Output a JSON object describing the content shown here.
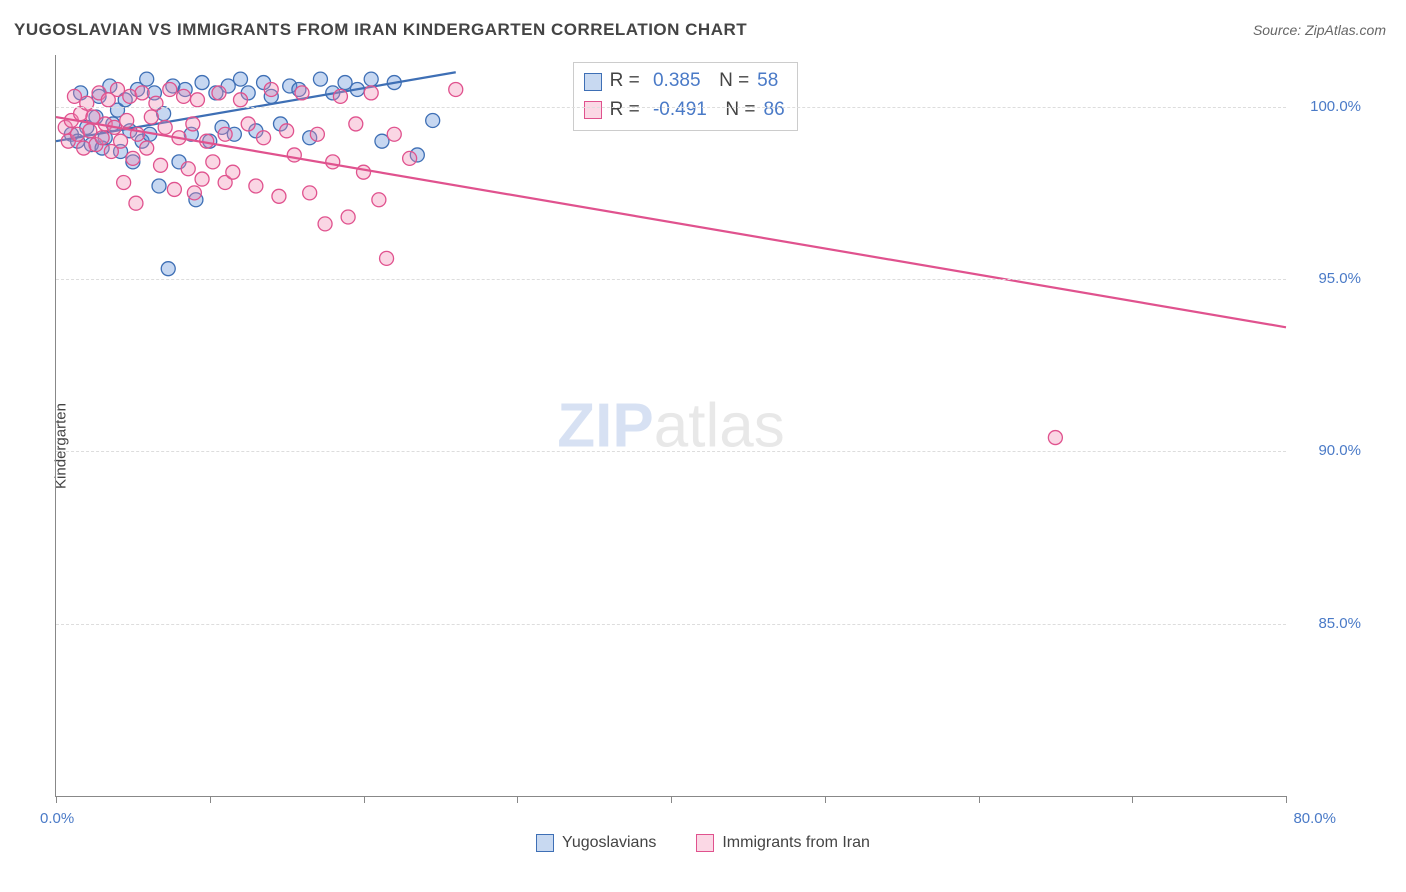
{
  "title": "YUGOSLAVIAN VS IMMIGRANTS FROM IRAN KINDERGARTEN CORRELATION CHART",
  "source": "Source: ZipAtlas.com",
  "y_axis_label": "Kindergarten",
  "watermark": {
    "zip": "ZIP",
    "rest": "atlas"
  },
  "chart": {
    "type": "scatter",
    "xlim": [
      0,
      80
    ],
    "ylim": [
      80,
      101.5
    ],
    "x_origin_label": "0.0%",
    "x_max_label": "80.0%",
    "y_ticks": [
      {
        "v": 85,
        "label": "85.0%"
      },
      {
        "v": 90,
        "label": "90.0%"
      },
      {
        "v": 95,
        "label": "95.0%"
      },
      {
        "v": 100,
        "label": "100.0%"
      }
    ],
    "x_tick_positions": [
      0,
      10,
      20,
      30,
      40,
      50,
      60,
      70,
      80
    ],
    "grid_color": "#dddddd",
    "background_color": "#ffffff",
    "marker_radius": 7,
    "marker_fill_opacity": 0.35,
    "series": [
      {
        "name": "Yugoslavians",
        "color": "#5b8dd6",
        "stroke": "#3e6fb5",
        "R": "0.385",
        "N": "58",
        "trend": {
          "x1": 0,
          "y1": 99.0,
          "x2": 26,
          "y2": 101.0
        },
        "points": [
          [
            1.0,
            99.2
          ],
          [
            1.4,
            99.0
          ],
          [
            1.6,
            100.4
          ],
          [
            2.0,
            99.4
          ],
          [
            2.3,
            98.9
          ],
          [
            2.6,
            99.7
          ],
          [
            2.8,
            100.3
          ],
          [
            3.0,
            98.8
          ],
          [
            3.2,
            99.1
          ],
          [
            3.5,
            100.6
          ],
          [
            3.7,
            99.5
          ],
          [
            4.0,
            99.9
          ],
          [
            4.2,
            98.7
          ],
          [
            4.5,
            100.2
          ],
          [
            4.8,
            99.3
          ],
          [
            5.0,
            98.4
          ],
          [
            5.3,
            100.5
          ],
          [
            5.6,
            99.0
          ],
          [
            5.9,
            100.8
          ],
          [
            6.1,
            99.2
          ],
          [
            6.4,
            100.4
          ],
          [
            6.7,
            97.7
          ],
          [
            7.0,
            99.8
          ],
          [
            7.3,
            95.3
          ],
          [
            7.6,
            100.6
          ],
          [
            8.0,
            98.4
          ],
          [
            8.4,
            100.5
          ],
          [
            8.8,
            99.2
          ],
          [
            9.1,
            97.3
          ],
          [
            9.5,
            100.7
          ],
          [
            10.0,
            99.0
          ],
          [
            10.4,
            100.4
          ],
          [
            10.8,
            99.4
          ],
          [
            11.2,
            100.6
          ],
          [
            11.6,
            99.2
          ],
          [
            12.0,
            100.8
          ],
          [
            12.5,
            100.4
          ],
          [
            13.0,
            99.3
          ],
          [
            13.5,
            100.7
          ],
          [
            14.0,
            100.3
          ],
          [
            14.6,
            99.5
          ],
          [
            15.2,
            100.6
          ],
          [
            15.8,
            100.5
          ],
          [
            16.5,
            99.1
          ],
          [
            17.2,
            100.8
          ],
          [
            18.0,
            100.4
          ],
          [
            18.8,
            100.7
          ],
          [
            19.6,
            100.5
          ],
          [
            20.5,
            100.8
          ],
          [
            21.2,
            99.0
          ],
          [
            22.0,
            100.7
          ],
          [
            23.5,
            98.6
          ],
          [
            24.5,
            99.6
          ]
        ]
      },
      {
        "name": "Immigrants from Iran",
        "color": "#f28ab2",
        "stroke": "#e0528e",
        "R": "-0.491",
        "N": "86",
        "trend": {
          "x1": 0,
          "y1": 99.7,
          "x2": 80,
          "y2": 93.6
        },
        "points": [
          [
            0.6,
            99.4
          ],
          [
            0.8,
            99.0
          ],
          [
            1.0,
            99.6
          ],
          [
            1.2,
            100.3
          ],
          [
            1.4,
            99.2
          ],
          [
            1.6,
            99.8
          ],
          [
            1.8,
            98.8
          ],
          [
            2.0,
            100.1
          ],
          [
            2.2,
            99.3
          ],
          [
            2.4,
            99.7
          ],
          [
            2.6,
            98.9
          ],
          [
            2.8,
            100.4
          ],
          [
            3.0,
            99.1
          ],
          [
            3.2,
            99.5
          ],
          [
            3.4,
            100.2
          ],
          [
            3.6,
            98.7
          ],
          [
            3.8,
            99.4
          ],
          [
            4.0,
            100.5
          ],
          [
            4.2,
            99.0
          ],
          [
            4.4,
            97.8
          ],
          [
            4.6,
            99.6
          ],
          [
            4.8,
            100.3
          ],
          [
            5.0,
            98.5
          ],
          [
            5.3,
            99.2
          ],
          [
            5.6,
            100.4
          ],
          [
            5.9,
            98.8
          ],
          [
            5.2,
            97.2
          ],
          [
            6.2,
            99.7
          ],
          [
            6.5,
            100.1
          ],
          [
            6.8,
            98.3
          ],
          [
            7.1,
            99.4
          ],
          [
            7.4,
            100.5
          ],
          [
            7.7,
            97.6
          ],
          [
            8.0,
            99.1
          ],
          [
            8.3,
            100.3
          ],
          [
            8.6,
            98.2
          ],
          [
            8.9,
            99.5
          ],
          [
            9.2,
            100.2
          ],
          [
            9.5,
            97.9
          ],
          [
            9.8,
            99.0
          ],
          [
            9.0,
            97.5
          ],
          [
            10.2,
            98.4
          ],
          [
            10.6,
            100.4
          ],
          [
            11.0,
            99.2
          ],
          [
            11.0,
            97.8
          ],
          [
            11.5,
            98.1
          ],
          [
            12.0,
            100.2
          ],
          [
            12.5,
            99.5
          ],
          [
            13.0,
            97.7
          ],
          [
            13.5,
            99.1
          ],
          [
            14.0,
            100.5
          ],
          [
            14.5,
            97.4
          ],
          [
            15.0,
            99.3
          ],
          [
            15.5,
            98.6
          ],
          [
            16.0,
            100.4
          ],
          [
            16.5,
            97.5
          ],
          [
            17.0,
            99.2
          ],
          [
            17.5,
            96.6
          ],
          [
            18.0,
            98.4
          ],
          [
            18.5,
            100.3
          ],
          [
            19.0,
            96.8
          ],
          [
            19.5,
            99.5
          ],
          [
            20.0,
            98.1
          ],
          [
            20.5,
            100.4
          ],
          [
            21.0,
            97.3
          ],
          [
            21.5,
            95.6
          ],
          [
            22.0,
            99.2
          ],
          [
            23.0,
            98.5
          ],
          [
            26.0,
            100.5
          ],
          [
            65.0,
            90.4
          ]
        ]
      }
    ]
  },
  "stats_box": {
    "left_pct": 42,
    "top_pct": 1
  },
  "legend": {
    "items": [
      {
        "label": "Yugoslavians",
        "color": "#5b8dd6",
        "stroke": "#3e6fb5"
      },
      {
        "label": "Immigrants from Iran",
        "color": "#f28ab2",
        "stroke": "#e0528e"
      }
    ]
  }
}
